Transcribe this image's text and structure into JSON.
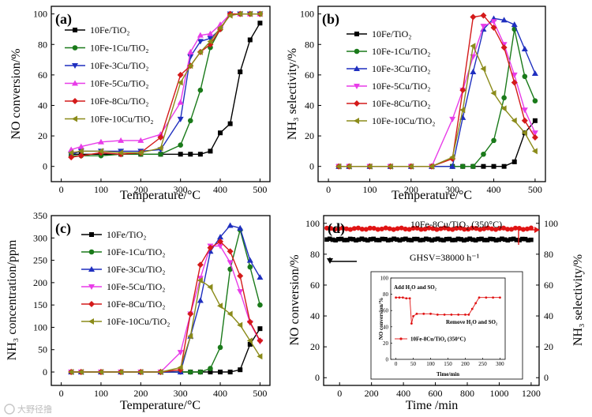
{
  "watermark": "大野径撸",
  "chart_data": [
    {
      "id": "a",
      "type": "line",
      "panel_label": "(a)",
      "xlabel": "Temperature/°C",
      "ylabel": "NO conversion/%",
      "xlim": [
        -25,
        525
      ],
      "ylim": [
        -10,
        105
      ],
      "xticks": [
        0,
        100,
        200,
        300,
        400,
        500
      ],
      "yticks": [
        0,
        20,
        40,
        60,
        80,
        100
      ],
      "legend_position": "top-left",
      "series": [
        {
          "name": "10Fe/TiO₂",
          "color": "#000000",
          "marker": "square",
          "x": [
            25,
            50,
            100,
            150,
            200,
            250,
            300,
            325,
            350,
            375,
            400,
            425,
            450,
            475,
            500
          ],
          "y": [
            8,
            8,
            8,
            8,
            8,
            8,
            8,
            8,
            8,
            10,
            22,
            28,
            62,
            83,
            94
          ]
        },
        {
          "name": "10Fe-1Cu/TiO₂",
          "color": "#1a7a1a",
          "marker": "circle",
          "x": [
            25,
            50,
            100,
            150,
            200,
            250,
            300,
            325,
            350,
            375,
            400,
            425,
            450,
            475,
            500
          ],
          "y": [
            7,
            7,
            7,
            8,
            8,
            8,
            14,
            30,
            50,
            78,
            90,
            100,
            100,
            100,
            100
          ]
        },
        {
          "name": "10Fe-3Cu/TiO₂",
          "color": "#1f2fbf",
          "marker": "triangle-down",
          "x": [
            25,
            50,
            100,
            150,
            200,
            250,
            300,
            325,
            350,
            375,
            400,
            425,
            450,
            475,
            500
          ],
          "y": [
            8,
            10,
            10,
            10,
            10,
            11,
            31,
            72,
            82,
            84,
            90,
            100,
            100,
            100,
            100
          ]
        },
        {
          "name": "10Fe-5Cu/TiO₂",
          "color": "#e83ce8",
          "marker": "triangle-up",
          "x": [
            25,
            50,
            100,
            150,
            200,
            250,
            300,
            325,
            350,
            375,
            400,
            425,
            450,
            475,
            500
          ],
          "y": [
            11,
            13,
            16,
            17,
            17,
            21,
            42,
            75,
            86,
            87,
            93,
            100,
            100,
            100,
            100
          ]
        },
        {
          "name": "10Fe-8Cu/TiO₂",
          "color": "#d41a1a",
          "marker": "diamond",
          "x": [
            25,
            50,
            100,
            150,
            200,
            250,
            300,
            325,
            350,
            375,
            400,
            425,
            450,
            475,
            500
          ],
          "y": [
            6,
            7,
            9,
            8,
            9,
            19,
            60,
            66,
            75,
            80,
            90,
            100,
            100,
            100,
            100
          ]
        },
        {
          "name": "10Fe-10Cu/TiO₂",
          "color": "#8b8b1a",
          "marker": "triangle-left",
          "x": [
            25,
            50,
            100,
            150,
            200,
            250,
            300,
            325,
            350,
            375,
            400,
            425,
            450,
            475,
            500
          ],
          "y": [
            9,
            10,
            10,
            9,
            9,
            12,
            55,
            66,
            75,
            82,
            91,
            99,
            100,
            100,
            100
          ]
        }
      ]
    },
    {
      "id": "b",
      "type": "line",
      "panel_label": "(b)",
      "xlabel": "Temperature/°C",
      "ylabel": "NH₃ selectivity/%",
      "xlim": [
        -25,
        525
      ],
      "ylim": [
        -10,
        105
      ],
      "xticks": [
        0,
        100,
        200,
        300,
        400,
        500
      ],
      "yticks": [
        0,
        20,
        40,
        60,
        80,
        100
      ],
      "legend_position": "top-left",
      "series": [
        {
          "name": "10Fe/TiO₂",
          "color": "#000000",
          "marker": "square",
          "x": [
            25,
            50,
            100,
            150,
            200,
            250,
            300,
            325,
            350,
            375,
            400,
            425,
            450,
            475,
            500
          ],
          "y": [
            0,
            0,
            0,
            0,
            0,
            0,
            0,
            0,
            0,
            0,
            0,
            0,
            3,
            22,
            30
          ]
        },
        {
          "name": "10Fe-1Cu/TiO₂",
          "color": "#1a7a1a",
          "marker": "circle",
          "x": [
            25,
            50,
            100,
            150,
            200,
            250,
            300,
            325,
            350,
            375,
            400,
            425,
            450,
            475,
            500
          ],
          "y": [
            0,
            0,
            0,
            0,
            0,
            0,
            0,
            0,
            0,
            8,
            17,
            45,
            90,
            59,
            43
          ]
        },
        {
          "name": "10Fe-3Cu/TiO₂",
          "color": "#1f2fbf",
          "marker": "triangle-up",
          "x": [
            25,
            50,
            100,
            150,
            200,
            250,
            300,
            325,
            350,
            375,
            400,
            425,
            450,
            475,
            500
          ],
          "y": [
            0,
            0,
            0,
            0,
            0,
            0,
            0,
            32,
            62,
            90,
            97,
            96,
            93,
            77,
            61
          ]
        },
        {
          "name": "10Fe-5Cu/TiO₂",
          "color": "#e83ce8",
          "marker": "triangle-down",
          "x": [
            25,
            50,
            100,
            150,
            200,
            250,
            300,
            325,
            350,
            375,
            400,
            425,
            450,
            475,
            500
          ],
          "y": [
            0,
            0,
            0,
            0,
            0,
            0,
            31,
            50,
            72,
            92,
            95,
            80,
            60,
            37,
            22
          ]
        },
        {
          "name": "10Fe-8Cu/TiO₂",
          "color": "#d41a1a",
          "marker": "diamond",
          "x": [
            25,
            50,
            100,
            150,
            200,
            250,
            300,
            325,
            350,
            375,
            400,
            425,
            450,
            475,
            500
          ],
          "y": [
            0,
            0,
            0,
            0,
            0,
            0,
            5,
            50,
            98,
            99,
            91,
            78,
            55,
            30,
            19
          ]
        },
        {
          "name": "10Fe-10Cu/TiO₂",
          "color": "#8b8b1a",
          "marker": "triangle-left",
          "x": [
            25,
            50,
            100,
            150,
            200,
            250,
            300,
            325,
            350,
            375,
            400,
            425,
            450,
            475,
            500
          ],
          "y": [
            0,
            0,
            0,
            0,
            0,
            0,
            6,
            37,
            79,
            64,
            48,
            38,
            30,
            22,
            10
          ]
        }
      ]
    },
    {
      "id": "c",
      "type": "line",
      "panel_label": "(c)",
      "xlabel": "Temperature/°C",
      "ylabel": "NH₃ concentration/ppm",
      "xlim": [
        -25,
        525
      ],
      "ylim": [
        -30,
        350
      ],
      "xticks": [
        0,
        100,
        200,
        300,
        400,
        500
      ],
      "yticks": [
        0,
        50,
        100,
        150,
        200,
        250,
        300,
        350
      ],
      "legend_position": "top-left",
      "series": [
        {
          "name": "10Fe/TiO₂",
          "color": "#000000",
          "marker": "square",
          "x": [
            25,
            50,
            100,
            150,
            200,
            250,
            300,
            325,
            350,
            375,
            400,
            425,
            450,
            475,
            500
          ],
          "y": [
            0,
            0,
            0,
            0,
            0,
            0,
            0,
            0,
            0,
            0,
            0,
            0,
            5,
            62,
            97
          ]
        },
        {
          "name": "10Fe-1Cu/TiO₂",
          "color": "#1a7a1a",
          "marker": "circle",
          "x": [
            25,
            50,
            100,
            150,
            200,
            250,
            300,
            325,
            350,
            375,
            400,
            425,
            450,
            475,
            500
          ],
          "y": [
            0,
            0,
            0,
            0,
            0,
            0,
            0,
            0,
            0,
            8,
            55,
            230,
            318,
            235,
            150
          ]
        },
        {
          "name": "10Fe-3Cu/TiO₂",
          "color": "#1f2fbf",
          "marker": "triangle-up",
          "x": [
            25,
            50,
            100,
            150,
            200,
            250,
            300,
            325,
            350,
            375,
            400,
            425,
            450,
            475,
            500
          ],
          "y": [
            0,
            0,
            0,
            0,
            0,
            0,
            0,
            80,
            160,
            270,
            302,
            328,
            322,
            250,
            212
          ]
        },
        {
          "name": "10Fe-5Cu/TiO₂",
          "color": "#e83ce8",
          "marker": "triangle-down",
          "x": [
            25,
            50,
            100,
            150,
            200,
            250,
            300,
            325,
            350,
            375,
            400,
            425,
            450,
            475,
            500
          ],
          "y": [
            0,
            0,
            0,
            0,
            0,
            0,
            44,
            130,
            210,
            282,
            282,
            245,
            180,
            110,
            68
          ]
        },
        {
          "name": "10Fe-8Cu/TiO₂",
          "color": "#d41a1a",
          "marker": "diamond",
          "x": [
            25,
            50,
            100,
            150,
            200,
            250,
            300,
            325,
            350,
            375,
            400,
            425,
            450,
            475,
            500
          ],
          "y": [
            0,
            0,
            0,
            0,
            0,
            0,
            5,
            130,
            240,
            278,
            292,
            270,
            215,
            112,
            70
          ]
        },
        {
          "name": "10Fe-10Cu/TiO₂",
          "color": "#8b8b1a",
          "marker": "triangle-left",
          "x": [
            25,
            50,
            100,
            150,
            200,
            250,
            300,
            325,
            350,
            375,
            400,
            425,
            450,
            475,
            500
          ],
          "y": [
            0,
            0,
            0,
            0,
            0,
            0,
            10,
            80,
            205,
            190,
            148,
            130,
            105,
            70,
            35
          ]
        }
      ]
    },
    {
      "id": "d",
      "type": "line",
      "panel_label": "(d)",
      "xlabel": "Time /min",
      "ylabel": "NO conversion/%",
      "ylabel_right": "NH₃ selectivity/%",
      "xlim": [
        -100,
        1250
      ],
      "ylim": [
        -5,
        105
      ],
      "xticks": [
        0,
        200,
        400,
        600,
        800,
        1000,
        1200
      ],
      "yticks": [
        0,
        20,
        40,
        60,
        80,
        100
      ],
      "title": "10Fe-8Cu/TiO₂ (350°C)",
      "annotation": "GHSV=38000 h⁻¹",
      "series": [
        {
          "name": "NO conversion",
          "color": "#000000",
          "marker": "square",
          "axis": "left",
          "x_range": [
            -80,
            1200
          ],
          "y_level": 89.5
        },
        {
          "name": "NH₃ selectivity",
          "color": "#e01414",
          "marker": "circle",
          "axis": "right",
          "x_range": [
            -80,
            1200
          ],
          "y_level": 96.5
        }
      ],
      "inset": {
        "ylabel": "NO conversion/%",
        "xlabel": "Time/min",
        "xlim": [
          -15,
          315
        ],
        "ylim": [
          0,
          100
        ],
        "xticks": [
          0,
          50,
          100,
          150,
          200,
          250,
          300
        ],
        "yticks": [
          0,
          20,
          40,
          60,
          80,
          100
        ],
        "annotation_add": "Add H₂O and SO₂",
        "annotation_remove": "Remove H₂O and SO₂",
        "legend": "10Fe-8Cu/TiO₂ (350°C)",
        "color": "#e01414",
        "x": [
          0,
          10,
          20,
          30,
          40,
          45,
          50,
          60,
          80,
          100,
          120,
          140,
          160,
          180,
          200,
          210,
          220,
          230,
          240,
          260,
          280,
          300
        ],
        "y": [
          76,
          76,
          76,
          75,
          75,
          44,
          53,
          56,
          56,
          56,
          55,
          55,
          55,
          55,
          55,
          55,
          62,
          69,
          76,
          76,
          76,
          76
        ]
      }
    }
  ]
}
